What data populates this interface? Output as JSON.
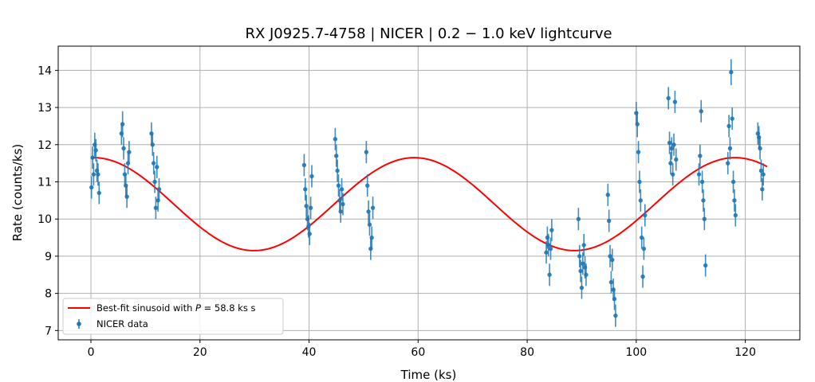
{
  "chart_data": {
    "type": "scatter",
    "title": "RX J0925.7-4758 | NICER | 0.2 − 1.0 keV lightcurve",
    "xlabel": "Time (ks)",
    "ylabel": "Rate (counts/ks)",
    "xlim": [
      -6,
      130
    ],
    "ylim": [
      6.75,
      14.65
    ],
    "xticks": [
      0,
      20,
      40,
      60,
      80,
      100,
      120
    ],
    "yticks": [
      7,
      8,
      9,
      10,
      11,
      12,
      13,
      14
    ],
    "grid": true,
    "legend_position": "lower-left",
    "colors": {
      "data": "#1f77b4",
      "fit": "#ff0000"
    },
    "legend": {
      "fit_prefix": "Best-fit sinusoid with ",
      "fit_var": "P",
      "fit_suffix": " = 58.8 ks s",
      "data_label": "NICER data"
    },
    "fit": {
      "period": 58.8,
      "mean": 10.4,
      "amplitude": 1.25,
      "peak_time": 0.5,
      "x_range": [
        0,
        124
      ]
    },
    "series": [
      {
        "kind": "errorbar",
        "x": [
          0.1,
          0.3,
          0.5,
          0.7,
          0.9,
          1.1,
          1.3,
          1.5,
          5.6,
          5.8,
          6.0,
          6.2,
          6.4,
          6.6,
          6.8,
          7.0,
          11.1,
          11.3,
          11.5,
          11.7,
          11.9,
          12.1,
          12.3,
          12.5,
          39.1,
          39.3,
          39.5,
          39.7,
          39.9,
          40.1,
          40.3,
          40.5,
          44.8,
          45.0,
          45.2,
          45.4,
          45.6,
          45.8,
          46.0,
          46.2,
          50.5,
          50.7,
          50.9,
          51.1,
          51.3,
          51.5,
          51.7,
          83.5,
          83.7,
          83.9,
          84.1,
          84.3,
          84.5,
          89.4,
          89.6,
          89.8,
          90.0,
          90.2,
          90.4,
          90.6,
          90.8,
          94.8,
          95.0,
          95.2,
          95.4,
          95.6,
          95.8,
          96.0,
          96.2,
          100.0,
          100.2,
          100.4,
          100.6,
          100.8,
          101.0,
          101.2,
          101.4,
          101.6,
          105.9,
          106.1,
          106.3,
          106.5,
          106.7,
          106.9,
          107.1,
          107.3,
          111.5,
          111.7,
          111.9,
          112.1,
          112.3,
          112.5,
          112.7,
          116.8,
          117.0,
          117.2,
          117.4,
          117.6,
          117.8,
          118.0,
          118.2,
          122.3,
          122.5,
          122.7,
          122.9,
          123.1,
          123.3
        ],
        "y": [
          10.85,
          11.65,
          11.2,
          12.0,
          11.85,
          11.3,
          11.2,
          10.7,
          12.3,
          12.55,
          11.9,
          11.2,
          10.9,
          10.6,
          11.5,
          11.8,
          12.3,
          12.0,
          11.5,
          11.0,
          10.3,
          11.4,
          10.5,
          10.8,
          11.45,
          10.8,
          10.35,
          10.0,
          9.8,
          9.6,
          10.3,
          11.15,
          12.15,
          11.7,
          11.3,
          10.9,
          10.5,
          10.2,
          10.8,
          10.4,
          11.8,
          10.9,
          10.2,
          9.85,
          9.2,
          9.5,
          10.3,
          9.1,
          9.5,
          9.3,
          8.5,
          9.2,
          9.7,
          10.0,
          9.0,
          8.6,
          8.15,
          8.8,
          9.3,
          8.7,
          8.5,
          10.65,
          9.95,
          9.0,
          8.3,
          8.9,
          8.1,
          7.85,
          7.4,
          12.85,
          12.55,
          11.8,
          11.0,
          10.5,
          9.5,
          8.45,
          9.2,
          10.1,
          13.25,
          12.05,
          11.5,
          11.9,
          11.2,
          12.0,
          13.15,
          11.6,
          11.2,
          11.7,
          12.9,
          11.0,
          10.5,
          10.0,
          8.75,
          11.5,
          12.5,
          11.9,
          13.95,
          12.7,
          11.0,
          10.5,
          10.1,
          12.3,
          12.2,
          11.9,
          11.3,
          10.8,
          11.2
        ],
        "yerr": [
          0.3,
          0.3,
          0.3,
          0.32,
          0.3,
          0.3,
          0.3,
          0.3,
          0.3,
          0.35,
          0.3,
          0.3,
          0.3,
          0.3,
          0.3,
          0.3,
          0.3,
          0.3,
          0.3,
          0.3,
          0.3,
          0.3,
          0.3,
          0.3,
          0.3,
          0.3,
          0.3,
          0.3,
          0.3,
          0.3,
          0.3,
          0.3,
          0.3,
          0.3,
          0.3,
          0.3,
          0.3,
          0.3,
          0.3,
          0.3,
          0.3,
          0.3,
          0.3,
          0.3,
          0.3,
          0.3,
          0.3,
          0.3,
          0.3,
          0.3,
          0.3,
          0.3,
          0.3,
          0.3,
          0.3,
          0.3,
          0.3,
          0.3,
          0.3,
          0.3,
          0.3,
          0.3,
          0.3,
          0.3,
          0.3,
          0.3,
          0.3,
          0.3,
          0.3,
          0.3,
          0.35,
          0.3,
          0.3,
          0.3,
          0.3,
          0.3,
          0.3,
          0.3,
          0.3,
          0.3,
          0.3,
          0.3,
          0.3,
          0.3,
          0.3,
          0.3,
          0.3,
          0.3,
          0.3,
          0.3,
          0.3,
          0.3,
          0.3,
          0.3,
          0.3,
          0.3,
          0.35,
          0.3,
          0.3,
          0.3,
          0.3,
          0.3,
          0.3,
          0.3,
          0.3,
          0.3,
          0.3
        ]
      }
    ]
  }
}
